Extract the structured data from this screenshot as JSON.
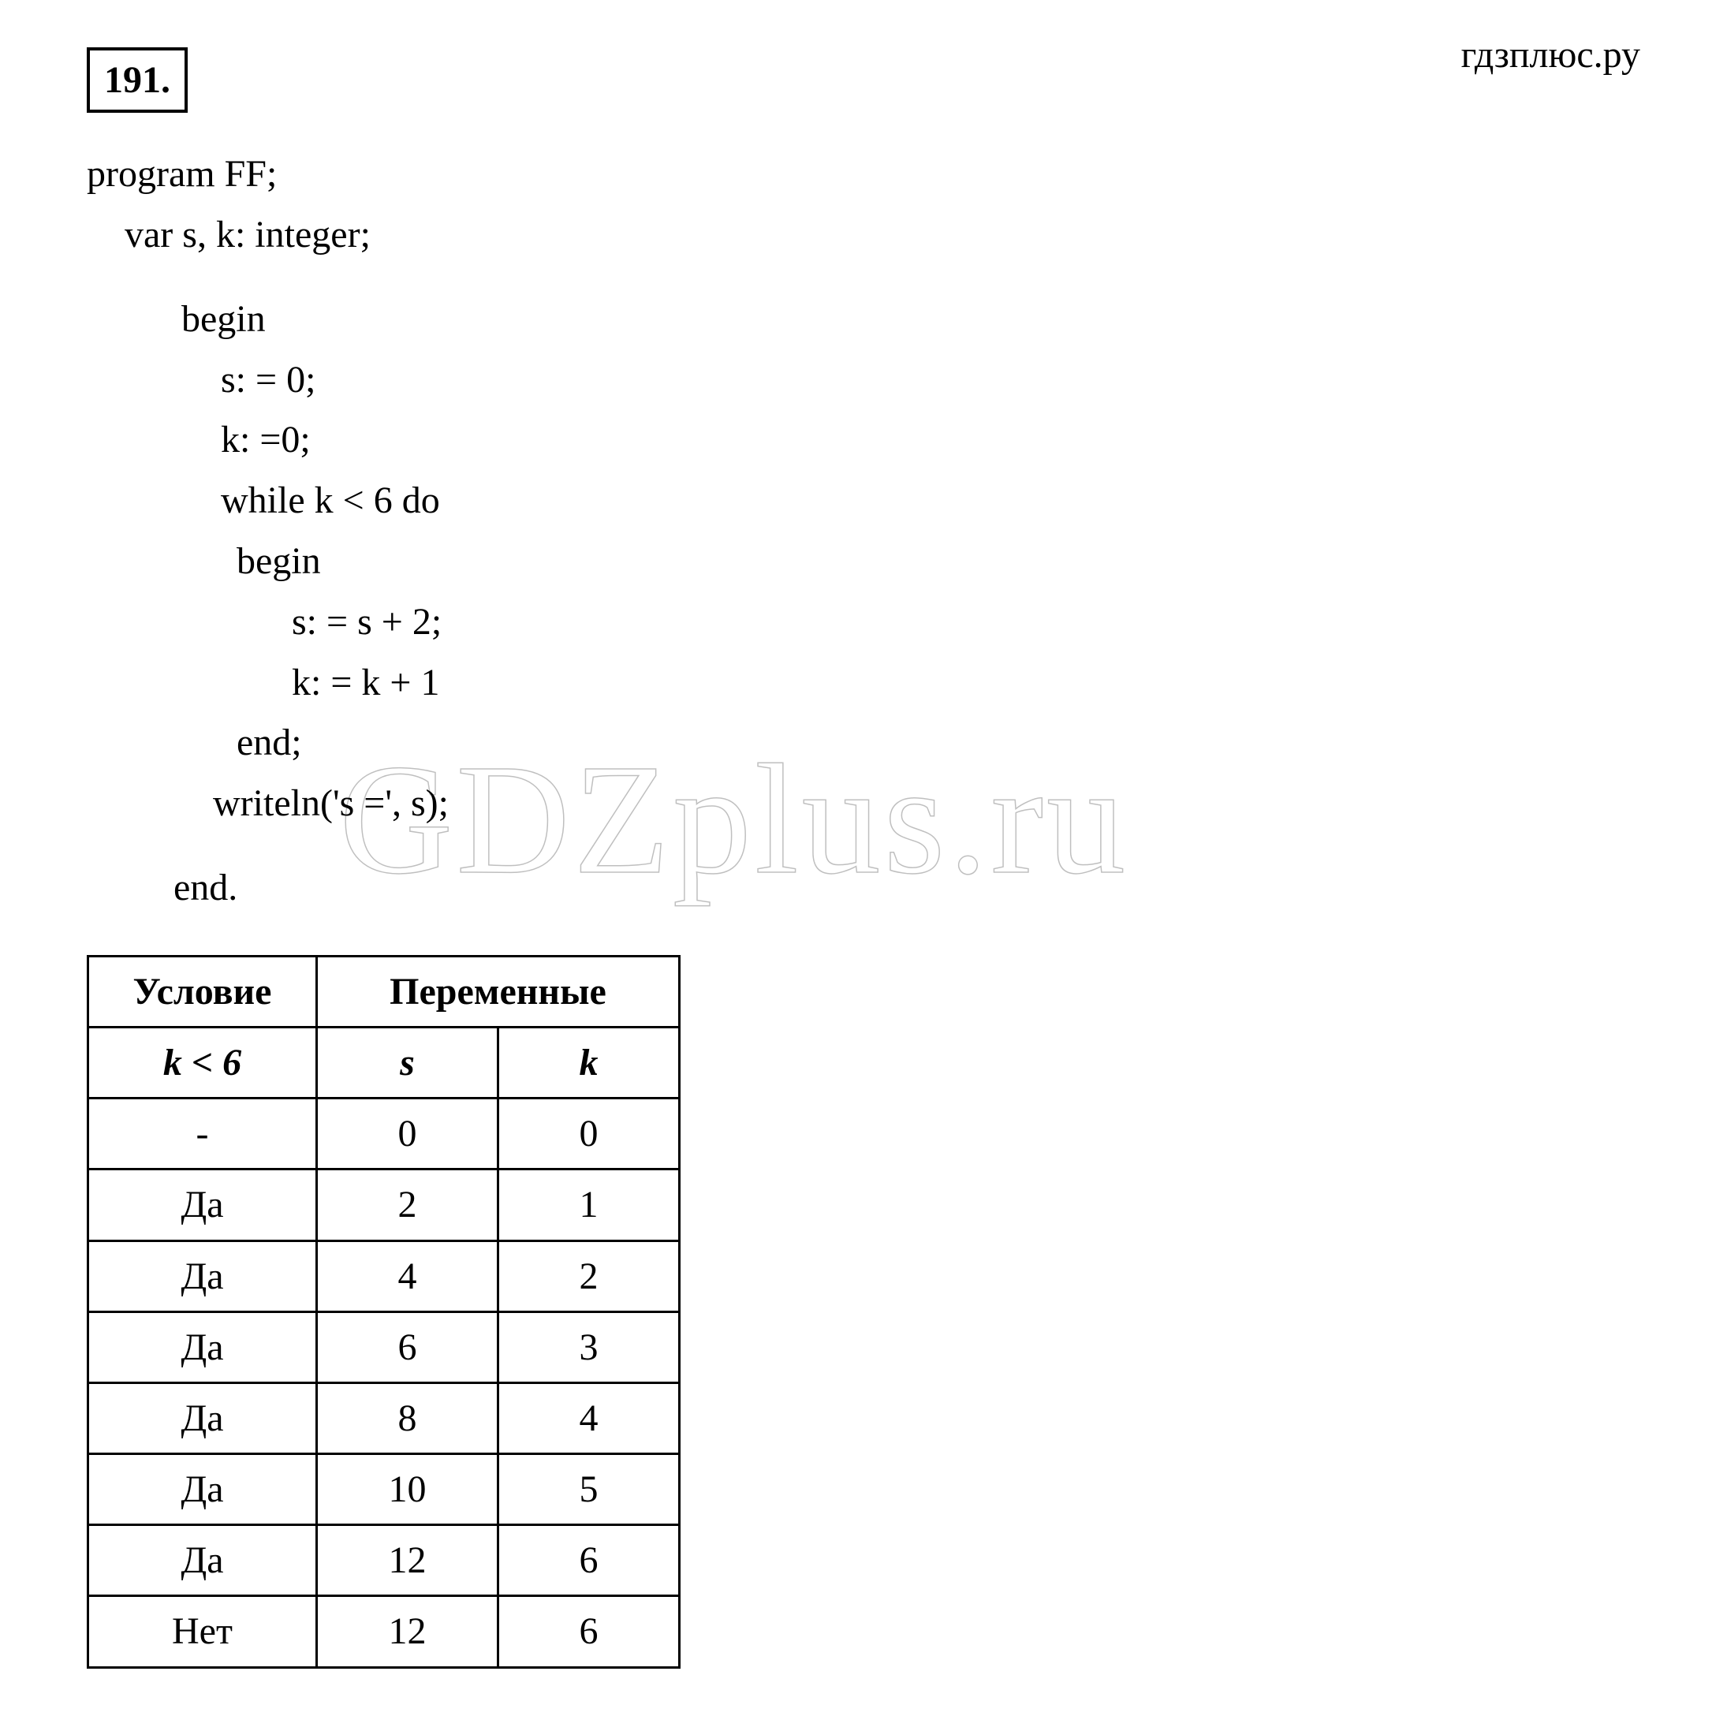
{
  "site_label": "гдзплюс.ру",
  "watermark_text": "GDZplus.ru",
  "problem_number": "191",
  "code": {
    "l1": "program FF;",
    "l2": "var s, k: integer;",
    "l3": "begin",
    "l4": "s: = 0;",
    "l5": "k: =0;",
    "l6": "while k < 6 do",
    "l7": "begin",
    "l8": "s: = s + 2;",
    "l9": "k: = k + 1",
    "l10": "end;",
    "l11": "writeln('s =', s);",
    "l12": "end."
  },
  "table": {
    "header_condition": "Условие",
    "header_vars": "Переменные",
    "sub_cond": "k < 6",
    "sub_s": "s",
    "sub_k": "k",
    "rows": [
      {
        "cond": "-",
        "s": "0",
        "k": "0"
      },
      {
        "cond": "Да",
        "s": "2",
        "k": "1"
      },
      {
        "cond": "Да",
        "s": "4",
        "k": "2"
      },
      {
        "cond": "Да",
        "s": "6",
        "k": "3"
      },
      {
        "cond": "Да",
        "s": "8",
        "k": "4"
      },
      {
        "cond": "Да",
        "s": "10",
        "k": "5"
      },
      {
        "cond": "Да",
        "s": "12",
        "k": "6"
      },
      {
        "cond": "Нет",
        "s": "12",
        "k": "6"
      }
    ],
    "border_color": "#000000",
    "cell_fontsize": 48,
    "col_widths": {
      "cond": 290,
      "s": 230,
      "k": 230
    }
  },
  "colors": {
    "background": "#ffffff",
    "text": "#000000",
    "watermark_stroke": "rgba(0,0,0,0.25)"
  },
  "typography": {
    "font_family": "Times New Roman",
    "body_fontsize": 48,
    "watermark_fontsize": 200
  }
}
